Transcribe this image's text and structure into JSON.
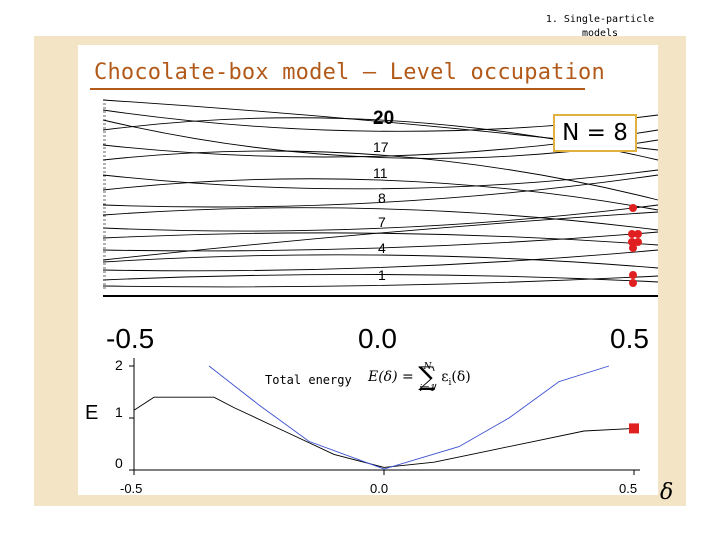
{
  "header": {
    "line1": "1. Single-particle",
    "line2": "models"
  },
  "title": "Chocolate-box model – Level occupation",
  "n_label": "N = 8",
  "top_plot": {
    "level_labels": [
      "20",
      "17",
      "11",
      "8",
      "7",
      "4",
      "1"
    ],
    "x_ticks": [
      "-0.5",
      "0.0",
      "0.5"
    ],
    "occupied_marker_color": "#e02020"
  },
  "bottom_plot": {
    "total_energy_label": "Total energy",
    "formula": {
      "lhs": "E(δ) =",
      "upper": "N",
      "lower": "i=1",
      "term": "ε",
      "term_sub": "i",
      "arg": "(δ)"
    },
    "y_label": "E",
    "x_label": "δ",
    "y_ticks": [
      "2",
      "1",
      "0"
    ],
    "x_ticks": [
      "-0.5",
      "0.0",
      "0.5"
    ]
  },
  "chart_data": {
    "type": "line",
    "xlim": [
      -0.5,
      0.5
    ],
    "ylim": [
      0,
      2
    ],
    "series": [
      {
        "x": [
          -0.5,
          -0.46,
          -0.42,
          -0.38,
          -0.34,
          -0.3,
          -0.2,
          -0.1,
          0.0,
          0.1,
          0.2,
          0.3,
          0.4,
          0.5
        ],
        "y": [
          1.15,
          1.4,
          1.4,
          1.4,
          1.4,
          1.2,
          0.75,
          0.3,
          0.05,
          0.15,
          0.35,
          0.55,
          0.75,
          0.8
        ]
      },
      {
        "x": [
          -0.35,
          -0.25,
          -0.15,
          0.0,
          0.15,
          0.25,
          0.35,
          0.45
        ],
        "y": [
          2.0,
          1.25,
          0.55,
          0.02,
          0.45,
          1.0,
          1.7,
          2.0
        ]
      }
    ],
    "highlight_point": {
      "x": 0.5,
      "y": 0.8
    }
  }
}
